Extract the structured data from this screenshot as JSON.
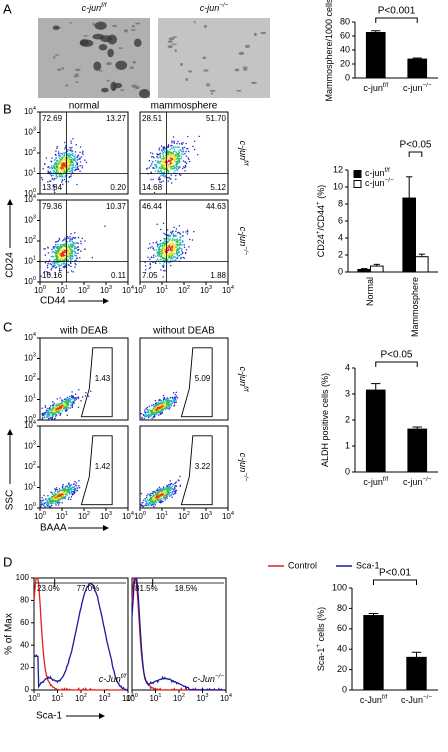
{
  "panel_a": {
    "letter": "A",
    "images": [
      {
        "base": "c-jun",
        "sup": "f/f"
      },
      {
        "base": "c-jun",
        "sup": "−/−"
      }
    ],
    "chart": {
      "type": "bar",
      "ylabel": [
        {
          "text": "Mammosphere/1000 cells"
        }
      ],
      "categories": [
        {
          "base": "c-jun",
          "sup": "f/f"
        },
        {
          "base": "c-jun",
          "sup": "−/−"
        }
      ],
      "series": [
        {
          "color": "#000000",
          "values": [
            65,
            27
          ],
          "errors": [
            2.5,
            1.5
          ]
        }
      ],
      "ylim": [
        0,
        80
      ],
      "yticks": [
        0,
        20,
        40,
        60,
        80
      ],
      "annotation": "P<0.001"
    }
  },
  "panel_b": {
    "letter": "B",
    "columns": [
      "normal",
      "mammosphere"
    ],
    "rows": [
      {
        "base": "c-jun",
        "sup": "f/f"
      },
      {
        "base": "c-jun",
        "sup": "−/−"
      }
    ],
    "xlabel": "CD44",
    "ylabel": "CD24",
    "quadrants": [
      [
        "72.69",
        "13.27",
        "13.84",
        "0.20"
      ],
      [
        "28.51",
        "51.70",
        "14.68",
        "5.12"
      ],
      [
        "79.36",
        "10.37",
        "10.16",
        "0.11"
      ],
      [
        "46.44",
        "44.63",
        "7.05",
        "1.88"
      ]
    ],
    "chart": {
      "type": "bar",
      "ylabel": [
        {
          "text": "CD24"
        },
        {
          "text": "+",
          "sup": true
        },
        {
          "text": "/CD44"
        },
        {
          "text": "+",
          "sup": true
        },
        {
          "text": " (%)"
        }
      ],
      "categories": [
        "Normal",
        "Mammosphere"
      ],
      "rotate_labels": true,
      "legend": true,
      "series": [
        {
          "name": {
            "base": "c-jun",
            "sup": "f/f"
          },
          "color": "#000000",
          "values": [
            0.3,
            8.7
          ],
          "errors": [
            0.1,
            2.5
          ]
        },
        {
          "name": {
            "base": "c-jun",
            "sup": "−/−"
          },
          "color": "#ffffff",
          "values": [
            0.7,
            1.8
          ],
          "errors": [
            0.2,
            0.3
          ]
        }
      ],
      "ylim": [
        0,
        12
      ],
      "yticks": [
        0,
        2,
        4,
        6,
        8,
        10,
        12
      ],
      "annotation": "P<0.05"
    }
  },
  "panel_c": {
    "letter": "C",
    "columns": [
      "with DEAB",
      "without DEAB"
    ],
    "rows": [
      {
        "base": "c-jun",
        "sup": "f/f"
      },
      {
        "base": "c-jun",
        "sup": "−/−"
      }
    ],
    "xlabel": "BAAA",
    "ylabel": "SSC",
    "gates": [
      "1.43",
      "5.09",
      "1.42",
      "3.22"
    ],
    "chart": {
      "type": "bar",
      "ylabel": [
        {
          "text": "ALDH positive cells (%)"
        }
      ],
      "categories": [
        {
          "base": "c-jun",
          "sup": "f/f"
        },
        {
          "base": "c-jun",
          "sup": "−/−"
        }
      ],
      "series": [
        {
          "color": "#000000",
          "values": [
            3.15,
            1.65
          ],
          "errors": [
            0.25,
            0.08
          ]
        }
      ],
      "ylim": [
        0,
        4
      ],
      "yticks": [
        0,
        1,
        2,
        3,
        4
      ],
      "annotation": "P<0.05"
    }
  },
  "panel_d": {
    "letter": "D",
    "legend": [
      {
        "name": "Control",
        "color": "#e02020"
      },
      {
        "name": "Sca-1",
        "color": "#1a1a9c"
      }
    ],
    "ylabel": "% of Max",
    "xlabel": "Sca-1",
    "hist_ylim": [
      0,
      100
    ],
    "hist_yticks": [
      0,
      20,
      40,
      60,
      80,
      100
    ],
    "gates": [
      [
        "23.0%",
        "77.0%"
      ],
      [
        "81.5%",
        "18.5%"
      ]
    ],
    "plot_labels": [
      {
        "base": "c-Jun",
        "sup": "f/f"
      },
      {
        "base": "c-Jun",
        "sup": "−/−"
      }
    ],
    "chart": {
      "type": "bar",
      "ylabel": [
        {
          "text": "Sca-1"
        },
        {
          "text": "+",
          "sup": true
        },
        {
          "text": " cells (%)"
        }
      ],
      "categories": [
        {
          "base": "c-Jun",
          "sup": "f/f"
        },
        {
          "base": "c-Jun",
          "sup": "−/−"
        }
      ],
      "series": [
        {
          "color": "#000000",
          "values": [
            73,
            32
          ],
          "errors": [
            2,
            5
          ]
        }
      ],
      "ylim": [
        0,
        100
      ],
      "yticks": [
        0,
        20,
        40,
        60,
        80,
        100
      ],
      "annotation": "P<0.01"
    }
  },
  "flow_ticks": [
    {
      "value": 1,
      "label": "10",
      "sup": "0"
    },
    {
      "value": 10,
      "label": "10",
      "sup": "1"
    },
    {
      "value": 100,
      "label": "10",
      "sup": "2"
    },
    {
      "value": 1000,
      "label": "10",
      "sup": "3"
    },
    {
      "value": 10000,
      "label": "10",
      "sup": "4"
    }
  ],
  "flow_lim": [
    1,
    10000
  ]
}
